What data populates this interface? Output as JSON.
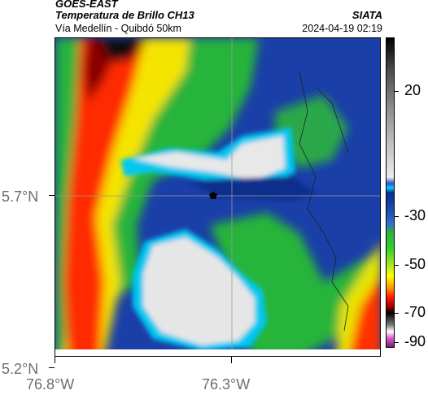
{
  "header": {
    "satellite": "GOES-EAST",
    "product": "Temperatura de Brillo CH13",
    "route": "Vía Medellín - Quibdó 50km",
    "org": "SIATA",
    "timestamp": "2024-04-19 02:19"
  },
  "axes": {
    "y_ticks": [
      "5.7°N",
      "5.2°N"
    ],
    "x_ticks": [
      "76.8°W",
      "76.3°W"
    ]
  },
  "colorbar": {
    "ticks": [
      "20",
      "-30",
      "-50",
      "-70",
      "-90"
    ],
    "scale_colors": [
      "#000000",
      "#c0c0c0",
      "#00d0ff",
      "#0a2d8c",
      "#2fd02f",
      "#ffff00",
      "#ff1800",
      "#ffffff",
      "#7a1a7a"
    ]
  },
  "map": {
    "gridline_color": "#9a9a9a",
    "marker_color": "#000000"
  }
}
